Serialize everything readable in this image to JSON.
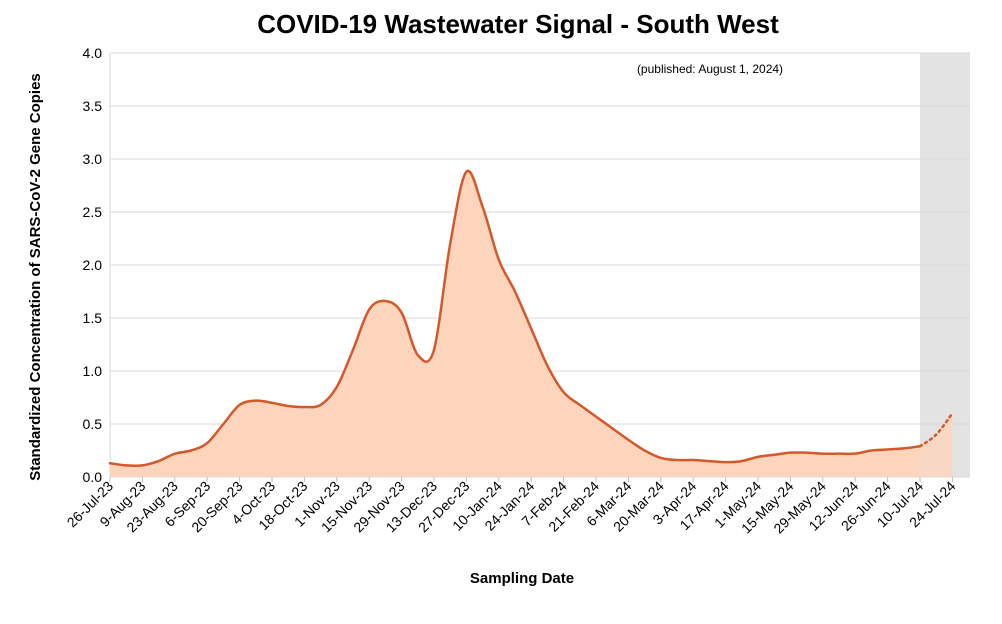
{
  "chart_data": {
    "type": "area",
    "title": "COVID-19 Wastewater Signal - South West",
    "subtitle": "(published: August 1, 2024)",
    "x_label": "Sampling Date",
    "y_label": "Standardized Concentration of SARS-CoV-2 Gene Copies",
    "categories": [
      "26-Jul-23",
      null,
      "9-Aug-23",
      null,
      "23-Aug-23",
      null,
      "6-Sep-23",
      null,
      "20-Sep-23",
      null,
      "4-Oct-23",
      null,
      "18-Oct-23",
      null,
      "1-Nov-23",
      null,
      "15-Nov-23",
      null,
      "29-Nov-23",
      null,
      "13-Dec-23",
      null,
      "27-Dec-23",
      null,
      "10-Jan-24",
      null,
      "24-Jan-24",
      null,
      "7-Feb-24",
      null,
      "21-Feb-24",
      null,
      "6-Mar-24",
      null,
      "20-Mar-24",
      null,
      "3-Apr-24",
      null,
      "17-Apr-24",
      null,
      "1-May-24",
      null,
      "15-May-24",
      null,
      "29-May-24",
      null,
      "12-Jun-24",
      null,
      "26-Jun-24",
      null,
      "10-Jul-24",
      null,
      "24-Jul-24"
    ],
    "series": [
      {
        "color": "#d4582a",
        "fill": "#fdd5bd",
        "dash": false,
        "values": [
          0.13,
          0.11,
          0.11,
          0.15,
          0.22,
          0.25,
          0.32,
          0.5,
          0.68,
          0.72,
          0.7,
          0.67,
          0.66,
          0.68,
          0.85,
          1.2,
          1.58,
          1.66,
          1.55,
          1.15,
          1.2,
          2.2,
          2.88,
          2.55,
          2.05,
          1.75,
          1.4,
          1.05,
          0.8,
          0.68,
          0.57,
          0.46,
          0.35,
          0.25,
          0.18,
          0.16,
          0.16,
          0.15,
          0.14,
          0.15,
          0.19,
          0.21,
          0.23,
          0.23,
          0.22,
          0.22,
          0.22,
          0.25,
          0.26,
          0.27,
          0.29,
          null,
          null
        ]
      },
      {
        "color": "#d4582a",
        "fill": "#fdd5bd",
        "dash": true,
        "values": [
          null,
          null,
          null,
          null,
          null,
          null,
          null,
          null,
          null,
          null,
          null,
          null,
          null,
          null,
          null,
          null,
          null,
          null,
          null,
          null,
          null,
          null,
          null,
          null,
          null,
          null,
          null,
          null,
          null,
          null,
          null,
          null,
          null,
          null,
          null,
          null,
          null,
          null,
          null,
          null,
          null,
          null,
          null,
          null,
          null,
          null,
          null,
          null,
          null,
          null,
          0.29,
          0.4,
          0.6
        ]
      }
    ],
    "ylim": [
      0,
      4
    ],
    "yticks": [
      {
        "value": 0,
        "label": "0.0"
      },
      {
        "value": 0.5,
        "label": "0.5"
      },
      {
        "value": 1,
        "label": "1.0"
      },
      {
        "value": 1.5,
        "label": "1.5"
      },
      {
        "value": 2,
        "label": "2.0"
      },
      {
        "value": 2.5,
        "label": "2.5"
      },
      {
        "value": 3,
        "label": "3.0"
      },
      {
        "value": 3.5,
        "label": "3.5"
      },
      {
        "value": 4,
        "label": "4.0"
      }
    ],
    "grid": true
  }
}
